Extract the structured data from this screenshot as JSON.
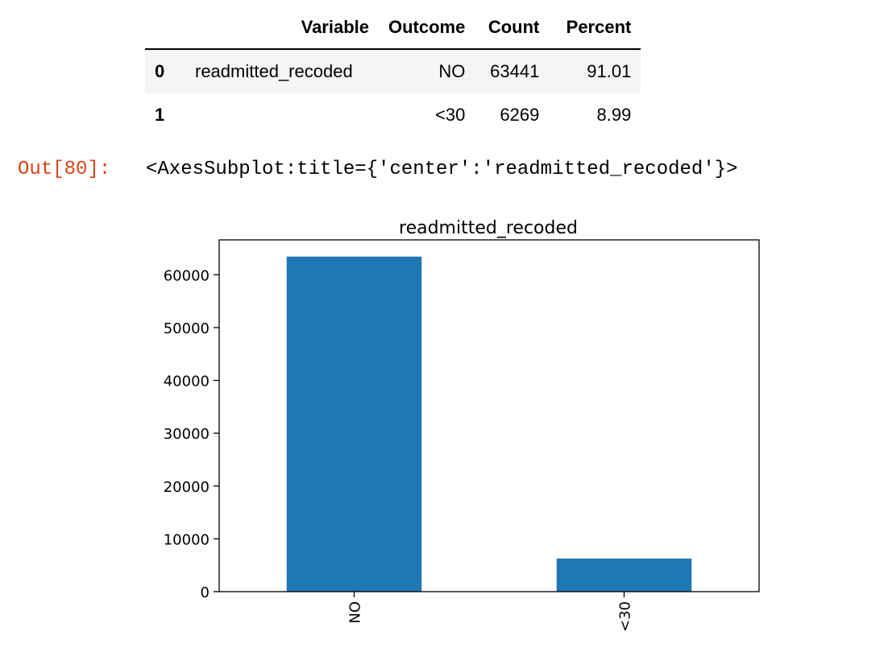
{
  "table": {
    "columns": [
      "",
      "Variable",
      "Outcome",
      "Count",
      "Percent"
    ],
    "rows": [
      {
        "index": "0",
        "variable": "readmitted_recoded",
        "outcome": "NO",
        "count": "63441",
        "percent": "91.01"
      },
      {
        "index": "1",
        "variable": "",
        "outcome": "<30",
        "count": "6269",
        "percent": "8.99"
      }
    ]
  },
  "output": {
    "prompt": "Out[80]:",
    "text": "<AxesSubplot:title={'center':'readmitted_recoded'}>"
  },
  "chart_data": {
    "type": "bar",
    "title": "readmitted_recoded",
    "xlabel": "",
    "ylabel": "",
    "categories": [
      "NO",
      "<30"
    ],
    "values": [
      63441,
      6269
    ],
    "ylim": [
      0,
      66610
    ],
    "yticks": [
      0,
      10000,
      20000,
      30000,
      40000,
      50000,
      60000
    ],
    "ytick_labels": [
      "0",
      "10000",
      "20000",
      "30000",
      "40000",
      "50000",
      "60000"
    ],
    "bar_color": "#1f77b4",
    "grid": false,
    "legend": "none",
    "xtick_rotation": "vertical"
  }
}
